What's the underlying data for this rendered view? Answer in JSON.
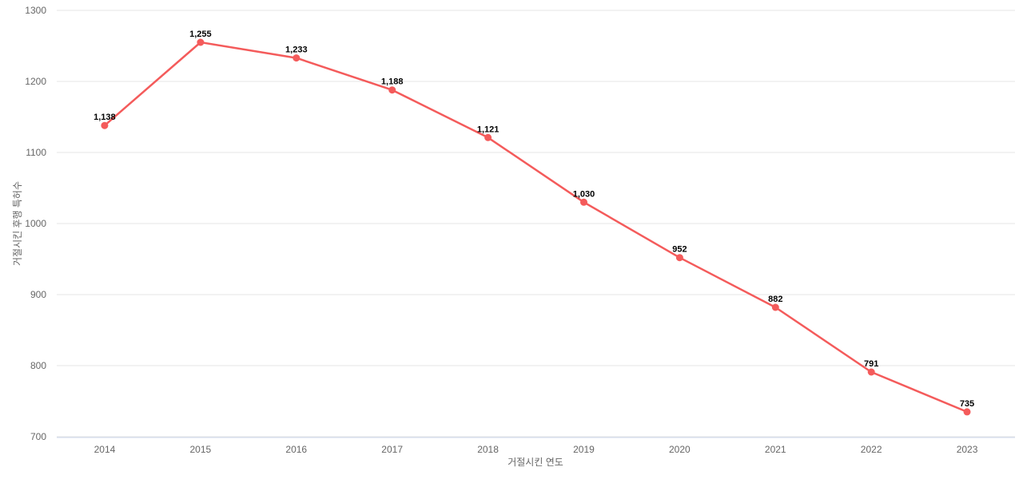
{
  "chart_data": {
    "type": "line",
    "x": [
      "2014",
      "2015",
      "2016",
      "2017",
      "2018",
      "2019",
      "2020",
      "2021",
      "2022",
      "2023"
    ],
    "series": [
      {
        "name": "거절시킨 후행 특허수",
        "values": [
          1138,
          1255,
          1233,
          1188,
          1121,
          1030,
          952,
          882,
          791,
          735
        ],
        "labels": [
          "1,138",
          "1,255",
          "1,233",
          "1,188",
          "1,121",
          "1,030",
          "952",
          "882",
          "791",
          "735"
        ],
        "color": "#f45b5b"
      }
    ],
    "title": "",
    "xlabel": "거절시킨 연도",
    "ylabel": "거절시킨 후행 특허수",
    "ylim": [
      700,
      1300
    ],
    "ytick_step": 100,
    "yticks": [
      "700",
      "800",
      "900",
      "1000",
      "1100",
      "1200",
      "1300"
    ],
    "grid": "horizontal-only",
    "legend": "none",
    "style": {
      "grid_color": "#e6e6e6",
      "axis_line_color": "#ccd6eb",
      "tick_label_color": "#666666",
      "axis_title_color": "#666666",
      "data_label_color": "#000000",
      "background": "#ffffff",
      "marker_radius": 4.5,
      "line_width": 2.5
    }
  }
}
